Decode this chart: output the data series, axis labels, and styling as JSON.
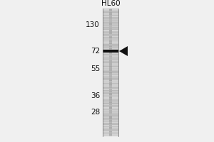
{
  "outer_bg": "#f0f0f0",
  "lane_bg": "#d8d8d8",
  "lane_label": "HL60",
  "mw_markers": [
    130,
    72,
    55,
    36,
    28
  ],
  "band_mw": 72,
  "band_color": "#111111",
  "arrow_color": "#111111",
  "marker_fontsize": 7.5,
  "label_fontsize": 7.5,
  "fig_width": 3.0,
  "fig_height": 2.0
}
